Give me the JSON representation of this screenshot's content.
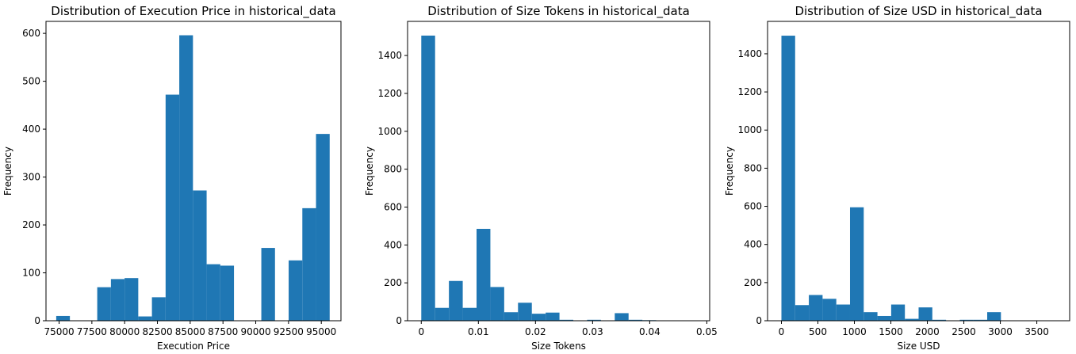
{
  "chart_data": [
    {
      "type": "bar",
      "title": "Distribution of Execution Price in historical_data",
      "xlabel": "Execution Price",
      "ylabel": "Frequency",
      "xlim": [
        74000,
        96500
      ],
      "ylim": [
        0,
        625
      ],
      "xticks": [
        75000,
        77500,
        80000,
        82500,
        85000,
        87500,
        90000,
        92500,
        95000
      ],
      "yticks": [
        0,
        100,
        200,
        300,
        400,
        500,
        600
      ],
      "bin_edges": [
        74780,
        75823,
        76866,
        77909,
        78952,
        79995,
        81038,
        82081,
        83124,
        84167,
        85210,
        86253,
        87296,
        88339,
        89382,
        90425,
        91468,
        92511,
        93554,
        94597,
        95640
      ],
      "counts": [
        10,
        0,
        0,
        70,
        87,
        89,
        9,
        49,
        472,
        596,
        272,
        118,
        115,
        0,
        0,
        152,
        0,
        126,
        235,
        390
      ],
      "color": "#1f77b4"
    },
    {
      "type": "bar",
      "title": "Distribution of Size Tokens in historical_data",
      "xlabel": "Size Tokens",
      "ylabel": "Frequency",
      "xlim": [
        -0.0024,
        0.0505
      ],
      "ylim": [
        0,
        1580
      ],
      "xticks": [
        0.0,
        0.01,
        0.02,
        0.03,
        0.04,
        0.05
      ],
      "yticks": [
        0,
        200,
        400,
        600,
        800,
        1000,
        1200,
        1400
      ],
      "bin_edges": [
        0.0,
        0.00242,
        0.00484,
        0.00726,
        0.00968,
        0.0121,
        0.01452,
        0.01694,
        0.01936,
        0.02178,
        0.0242,
        0.02662,
        0.02904,
        0.03146,
        0.03388,
        0.0363,
        0.03872,
        0.04114,
        0.04356,
        0.04598,
        0.0484
      ],
      "counts": [
        1505,
        68,
        210,
        68,
        485,
        178,
        45,
        95,
        37,
        43,
        5,
        0,
        5,
        0,
        40,
        5,
        3,
        0,
        0,
        2
      ],
      "color": "#1f77b4"
    },
    {
      "type": "bar",
      "title": "Distribution of Size USD in historical_data",
      "xlabel": "Size USD",
      "ylabel": "Frequency",
      "xlim": [
        -190,
        3950
      ],
      "ylim": [
        0,
        1570
      ],
      "xticks": [
        0,
        500,
        1000,
        1500,
        2000,
        2500,
        3000,
        3500
      ],
      "yticks": [
        0,
        200,
        400,
        600,
        800,
        1000,
        1200,
        1400
      ],
      "bin_edges": [
        0,
        188,
        376,
        564,
        752,
        940,
        1128,
        1316,
        1504,
        1692,
        1880,
        2068,
        2256,
        2444,
        2632,
        2820,
        3008,
        3196,
        3384,
        3572,
        3760
      ],
      "counts": [
        1495,
        82,
        135,
        115,
        85,
        595,
        45,
        25,
        85,
        10,
        70,
        5,
        0,
        5,
        5,
        45,
        0,
        0,
        0,
        0
      ],
      "color": "#1f77b4"
    }
  ]
}
